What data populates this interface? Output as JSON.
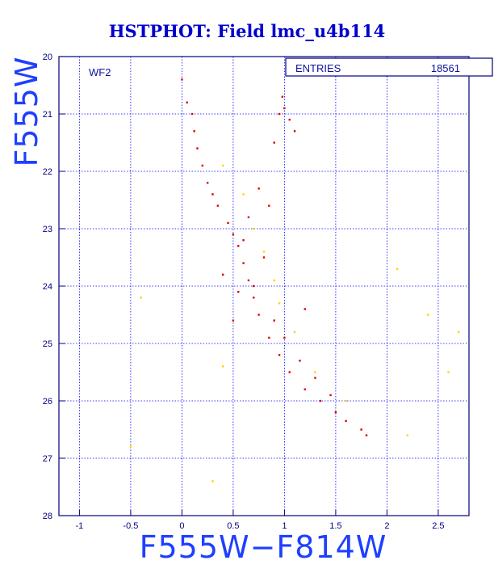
{
  "chart_data": {
    "type": "scatter",
    "title": "HSTPHOT: Field lmc_u4b114",
    "xlabel": "F555W−F814W",
    "ylabel": "F555W",
    "panel_label": "WF2",
    "stats_label": "ENTRIES",
    "stats_value": "18561",
    "xlim": [
      -1.2,
      2.8
    ],
    "ylim": [
      28,
      20
    ],
    "y_inverted": true,
    "xticks": [
      "-1",
      "-0.5",
      "0",
      "0.5",
      "1",
      "1.5",
      "2",
      "2.5"
    ],
    "yticks": [
      "20",
      "21",
      "22",
      "23",
      "24",
      "25",
      "26",
      "27",
      "28"
    ],
    "grid": true,
    "colors": {
      "background": "#ffffff",
      "frame": "#000080",
      "grid": "#0000ff",
      "series_main": "#dd0000",
      "series_secondary": "#ffd400"
    },
    "series": [
      {
        "color": "#dd0000",
        "points": [
          [
            0.0,
            20.4
          ],
          [
            0.05,
            20.8
          ],
          [
            0.1,
            21.0
          ],
          [
            0.12,
            21.3
          ],
          [
            0.15,
            21.6
          ],
          [
            0.2,
            21.9
          ],
          [
            0.25,
            22.2
          ],
          [
            0.3,
            22.4
          ],
          [
            0.35,
            22.6
          ],
          [
            0.45,
            22.9
          ],
          [
            0.5,
            23.1
          ],
          [
            0.55,
            23.3
          ],
          [
            0.6,
            23.6
          ],
          [
            0.65,
            23.9
          ],
          [
            0.7,
            24.2
          ],
          [
            0.75,
            24.5
          ],
          [
            0.85,
            24.9
          ],
          [
            0.95,
            25.2
          ],
          [
            1.05,
            25.5
          ],
          [
            1.2,
            25.8
          ],
          [
            1.35,
            26.0
          ],
          [
            1.5,
            26.2
          ],
          [
            1.6,
            26.35
          ],
          [
            1.75,
            26.5
          ],
          [
            0.95,
            21.0
          ],
          [
            1.0,
            20.9
          ],
          [
            1.05,
            21.1
          ],
          [
            0.98,
            20.7
          ],
          [
            1.1,
            21.3
          ],
          [
            0.9,
            21.5
          ],
          [
            0.75,
            22.3
          ],
          [
            0.85,
            22.6
          ],
          [
            0.65,
            22.8
          ],
          [
            0.6,
            23.2
          ],
          [
            0.8,
            23.5
          ],
          [
            0.7,
            24.0
          ],
          [
            0.9,
            24.6
          ],
          [
            1.0,
            24.9
          ],
          [
            1.15,
            25.3
          ],
          [
            1.3,
            25.6
          ],
          [
            1.45,
            25.9
          ],
          [
            1.8,
            26.6
          ],
          [
            0.55,
            24.1
          ],
          [
            0.5,
            24.6
          ],
          [
            0.4,
            23.8
          ],
          [
            1.2,
            24.4
          ]
        ]
      },
      {
        "color": "#ffd400",
        "points": [
          [
            0.7,
            23.0
          ],
          [
            0.8,
            23.4
          ],
          [
            0.9,
            23.9
          ],
          [
            0.95,
            24.3
          ],
          [
            1.1,
            24.8
          ],
          [
            1.3,
            25.5
          ],
          [
            1.6,
            26.0
          ],
          [
            2.1,
            23.7
          ],
          [
            2.4,
            24.5
          ],
          [
            2.6,
            25.5
          ],
          [
            -0.4,
            24.2
          ],
          [
            -0.5,
            26.8
          ],
          [
            0.3,
            27.4
          ],
          [
            0.4,
            25.4
          ],
          [
            2.2,
            26.6
          ],
          [
            2.7,
            24.8
          ],
          [
            0.6,
            22.4
          ],
          [
            0.4,
            21.9
          ]
        ]
      }
    ]
  }
}
